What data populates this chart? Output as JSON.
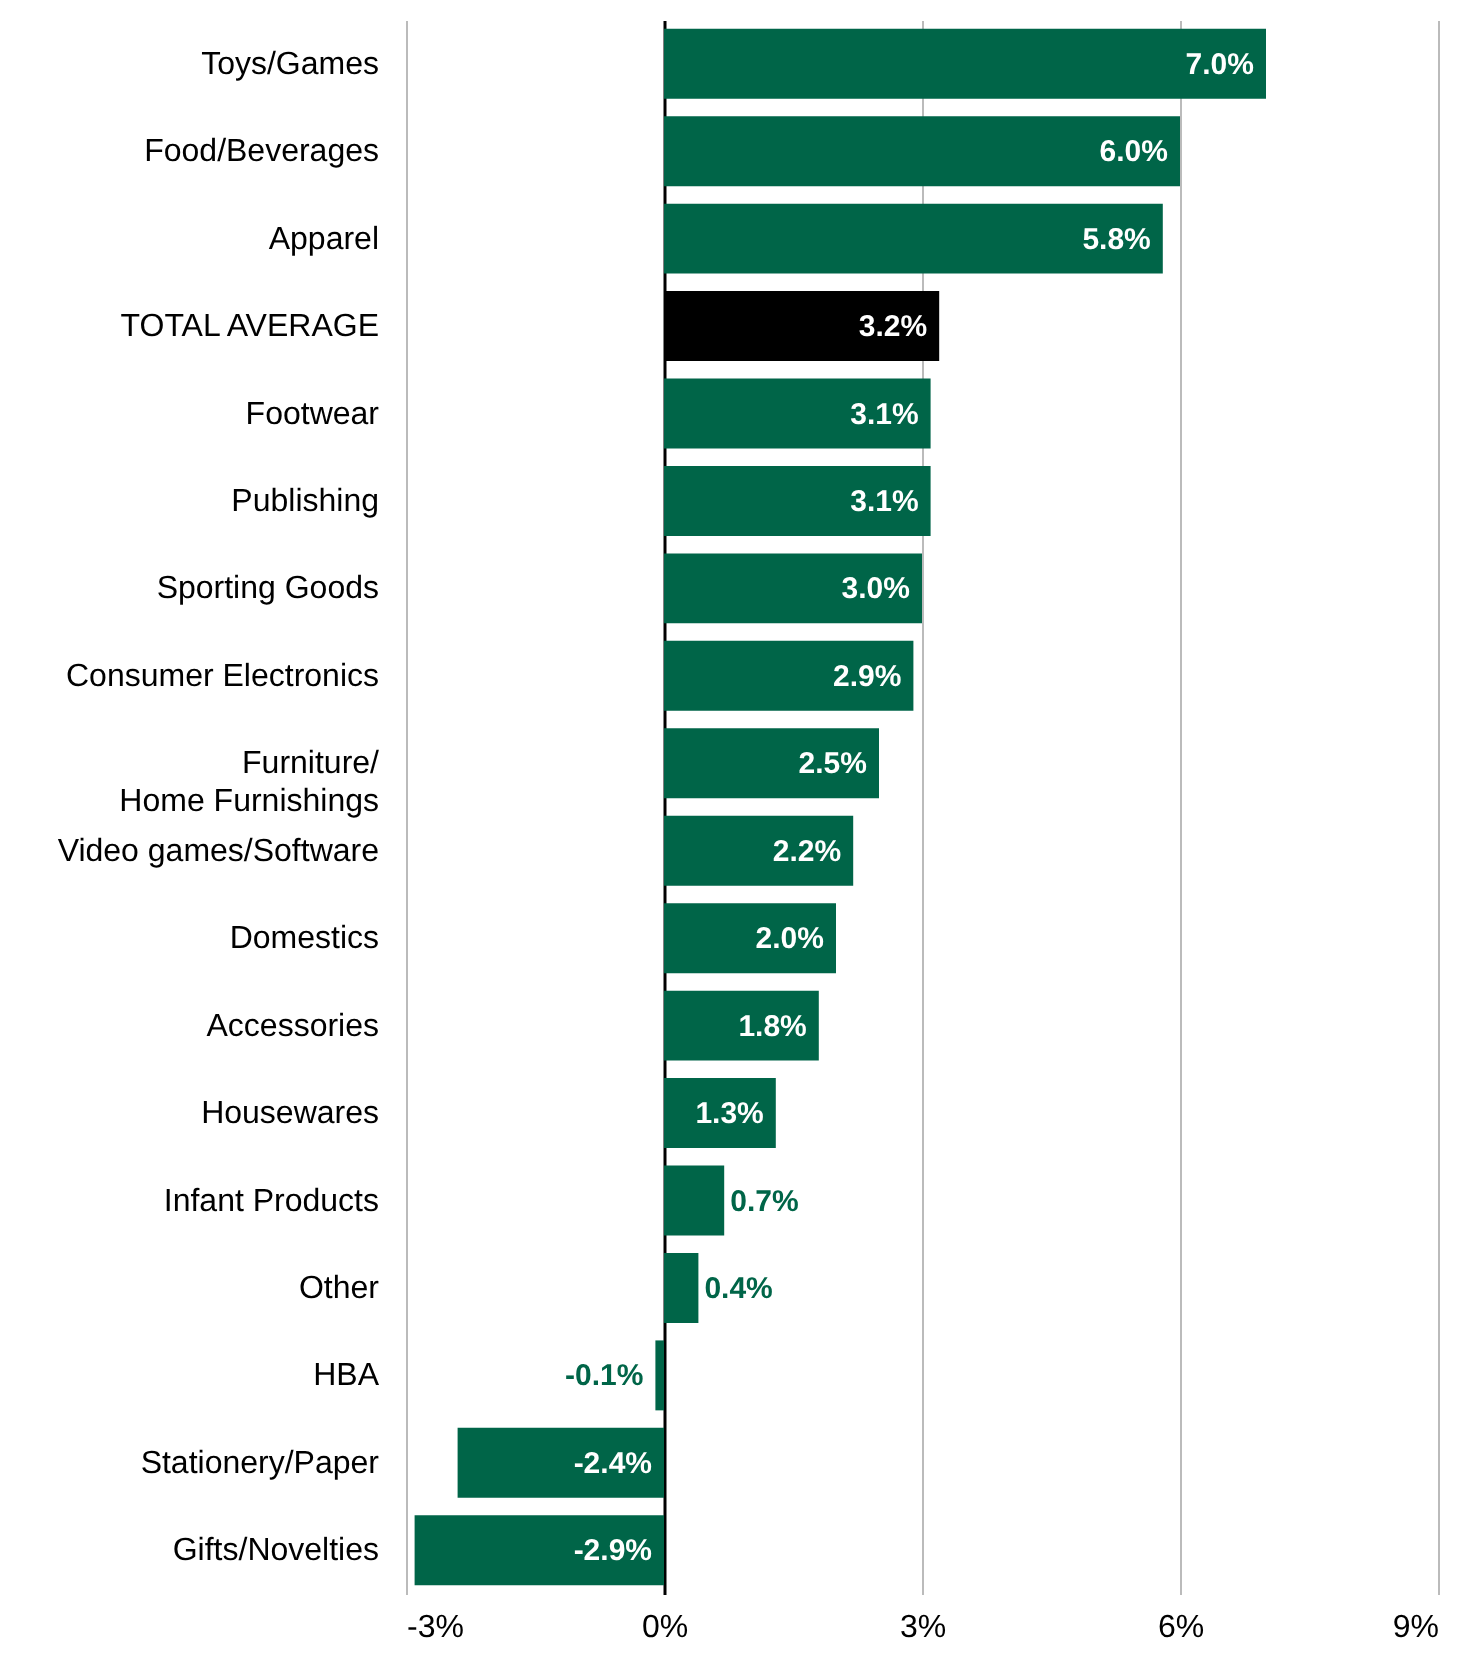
{
  "chart_data": {
    "type": "bar",
    "orientation": "horizontal",
    "categories": [
      "Toys/Games",
      "Food/Beverages",
      "Apparel",
      "TOTAL AVERAGE",
      "Footwear",
      "Publishing",
      "Sporting Goods",
      "Consumer Electronics",
      "Furniture/\nHome Furnishings",
      "Video games/Software",
      "Domestics",
      "Accessories",
      "Housewares",
      "Infant Products",
      "Other",
      "HBA",
      "Stationery/Paper",
      "Gifts/Novelties"
    ],
    "values": [
      7.0,
      6.0,
      5.8,
      3.2,
      3.1,
      3.1,
      3.0,
      2.9,
      2.5,
      2.2,
      2.0,
      1.8,
      1.3,
      0.7,
      0.4,
      -0.1,
      -2.4,
      -2.9
    ],
    "colors": [
      "#006548",
      "#006548",
      "#006548",
      "#000000",
      "#006548",
      "#006548",
      "#006548",
      "#006548",
      "#006548",
      "#006548",
      "#006548",
      "#006548",
      "#006548",
      "#006548",
      "#006548",
      "#006548",
      "#006548",
      "#006548"
    ],
    "value_labels": [
      "7.0%",
      "6.0%",
      "5.8%",
      "3.2%",
      "3.1%",
      "3.1%",
      "3.0%",
      "2.9%",
      "2.5%",
      "2.2%",
      "2.0%",
      "1.8%",
      "1.3%",
      "0.7%",
      "0.4%",
      "-0.1%",
      "-2.4%",
      "-2.9%"
    ],
    "xlim": [
      -3,
      9
    ],
    "xticks": [
      {
        "value": -3,
        "label": "-3%"
      },
      {
        "value": 0,
        "label": "0%"
      },
      {
        "value": 3,
        "label": "3%"
      },
      {
        "value": 6,
        "label": "6%"
      },
      {
        "value": 9,
        "label": "9%"
      }
    ],
    "grid": "x"
  }
}
